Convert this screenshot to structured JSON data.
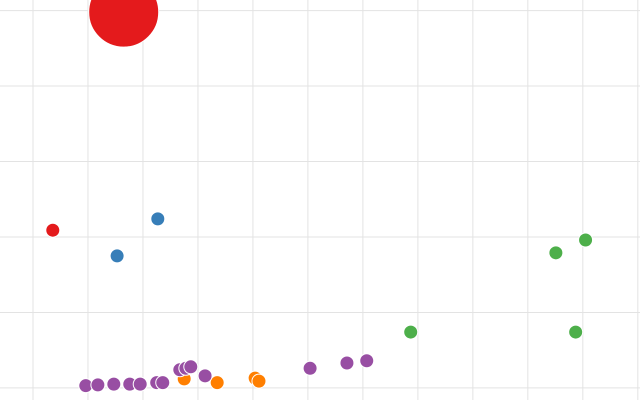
{
  "chart_data": {
    "type": "bubble",
    "grid": true,
    "xlim": [
      -0.6,
      11.04
    ],
    "ylim": [
      -0.16,
      5.14
    ],
    "xticks": [
      0,
      1,
      2,
      3,
      4,
      5,
      6,
      7,
      8,
      9,
      10,
      11
    ],
    "yticks": [
      0,
      1,
      2,
      3,
      4,
      5
    ],
    "series": [
      {
        "color": "#ff7f00",
        "x": [
          2.75,
          3.35,
          4.04,
          4.11
        ],
        "values": [
          0.12,
          0.07,
          0.13,
          0.09
        ],
        "sizes": [
          1,
          1,
          1,
          1
        ]
      },
      {
        "color": "#984ea3",
        "x": [
          0.96,
          1.18,
          1.47,
          1.76,
          1.95,
          2.25,
          2.36,
          2.67,
          2.78,
          2.87,
          3.13,
          5.04,
          5.71,
          6.07
        ],
        "values": [
          0.03,
          0.04,
          0.05,
          0.05,
          0.05,
          0.07,
          0.07,
          0.24,
          0.26,
          0.28,
          0.16,
          0.26,
          0.33,
          0.36
        ],
        "sizes": [
          1,
          1,
          1,
          1,
          1,
          1,
          1,
          1,
          1,
          1,
          1,
          1,
          1,
          1
        ]
      },
      {
        "color": "#4daf4a",
        "x": [
          9.51,
          10.05,
          6.87,
          9.87
        ],
        "values": [
          1.79,
          1.96,
          0.74,
          0.74
        ],
        "sizes": [
          1,
          1,
          1,
          1
        ]
      },
      {
        "color": "#377eb8",
        "x": [
          2.27,
          1.53
        ],
        "values": [
          2.24,
          1.75
        ],
        "sizes": [
          1,
          1
        ]
      },
      {
        "color": "#e41a1c",
        "x": [
          1.65,
          0.36
        ],
        "values": [
          4.98,
          2.09
        ],
        "sizes": [
          25,
          1
        ]
      }
    ]
  }
}
